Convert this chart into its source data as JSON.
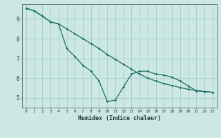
{
  "xlabel": "Humidex (Indice chaleur)",
  "background_color": "#cce8e4",
  "grid_color": "#aacfcb",
  "line_color": "#1a6b60",
  "xlim": [
    -0.5,
    23.5
  ],
  "ylim": [
    4.5,
    9.75
  ],
  "yticks": [
    5,
    6,
    7,
    8,
    9
  ],
  "xticks": [
    0,
    1,
    2,
    3,
    4,
    5,
    6,
    7,
    8,
    9,
    10,
    11,
    12,
    13,
    14,
    15,
    16,
    17,
    18,
    19,
    20,
    21,
    22,
    23
  ],
  "line1_x": [
    0,
    1,
    2,
    3,
    4,
    5,
    6,
    7,
    8,
    9,
    10,
    11,
    12,
    13,
    14,
    15,
    16,
    17,
    18,
    19,
    20,
    21,
    22,
    23
  ],
  "line1_y": [
    9.55,
    9.4,
    9.15,
    8.85,
    8.75,
    8.5,
    8.25,
    8.0,
    7.75,
    7.5,
    7.2,
    6.95,
    6.7,
    6.45,
    6.2,
    6.0,
    5.85,
    5.72,
    5.62,
    5.52,
    5.43,
    5.37,
    5.32,
    5.28
  ],
  "line2_x": [
    0,
    1,
    2,
    3,
    4,
    5,
    6,
    7,
    8,
    9,
    10,
    11,
    12,
    13,
    14,
    15,
    16,
    17,
    18,
    19,
    20,
    21,
    22,
    23
  ],
  "line2_y": [
    9.55,
    9.4,
    9.15,
    8.85,
    8.75,
    7.5,
    7.1,
    6.65,
    6.35,
    5.85,
    4.82,
    4.88,
    5.55,
    6.2,
    6.35,
    6.35,
    6.2,
    6.15,
    6.05,
    5.85,
    5.6,
    5.35,
    5.32,
    5.28
  ]
}
